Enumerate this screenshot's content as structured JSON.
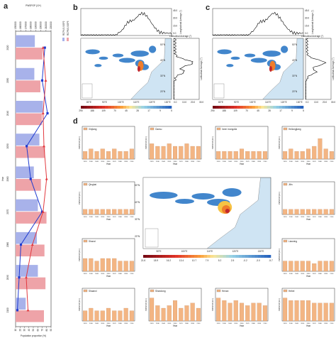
{
  "panel_labels": {
    "a": "a",
    "b": "b",
    "c": "c",
    "d": "d"
  },
  "colors": {
    "bar_blue": "#a8b2ea",
    "bar_red": "#eea3a8",
    "line_blue": "#1f3bd0",
    "line_red": "#e2393f",
    "map_blue": "#2d79c6",
    "map_orange": "#f07d2a",
    "sea": "#cfe4f3",
    "land": "#ffffff",
    "hbar": "#f3b583"
  },
  "chart_data": [
    {
      "id": "a",
      "type": "bar+line",
      "orientation": "rotated",
      "categories": [
        "2020",
        "2030",
        "2040",
        "2050",
        "2060",
        "2070",
        "2080",
        "2090",
        "2100"
      ],
      "xlabel": "Year",
      "ylabel_bars": "PWSPOP (10⁶)",
      "ylabel_lines": "Population proportion (%)",
      "bar_axis_ticks": [
        "150000",
        "160000",
        "170000",
        "180000",
        "190000",
        "200000",
        "210000",
        "220000"
      ],
      "line_axis_ticks": [
        "10",
        "20",
        "30",
        "40",
        "50",
        "60",
        "70",
        "80",
        "90"
      ],
      "legend": [
        "RCP4.5-SSP2",
        "RCP8.5-SSP3",
        "RCP4.5-SSP2",
        "RCP8.5-SSP3"
      ],
      "series": [
        {
          "name": "RCP4.5-SSP2",
          "kind": "bar",
          "values": [
            188000,
            187000,
            204000,
            197000,
            186000,
            194000,
            192000,
            194000,
            170000
          ]
        },
        {
          "name": "RCP8.5-SSP3",
          "kind": "bar",
          "values": [
            203000,
            199000,
            202000,
            208000,
            200000,
            211000,
            207000,
            209000,
            206000
          ]
        },
        {
          "name": "RCP4.5-SSP2",
          "kind": "line",
          "values": [
            76,
            70,
            82,
            35,
            44,
            70,
            22,
            18,
            14
          ]
        },
        {
          "name": "RCP8.5-SSP3",
          "kind": "line",
          "values": [
            72,
            78,
            72,
            74,
            80,
            72,
            48,
            34,
            38
          ]
        }
      ]
    },
    {
      "id": "b",
      "type": "map+marginals",
      "lon_ticks": [
        "80°E",
        "90°E",
        "100°E",
        "110°E",
        "120°E",
        "130°E"
      ],
      "lat_ticks": [
        "50°N",
        "40°N",
        "30°N",
        "20°N"
      ],
      "top_axis_ticks": [
        "45.0",
        "30.0",
        "15.0",
        "0.0"
      ],
      "top_label": "Longitudinal Average (°)",
      "right_axis_ticks": [
        "0.0",
        "10.0",
        "20.0",
        "30.0"
      ],
      "right_label": "Latitudinal Average (°)",
      "colorbar_ticks": [
        "290",
        "188",
        "109",
        "70",
        "45",
        "28",
        "17",
        "9",
        "5"
      ]
    },
    {
      "id": "c",
      "type": "map+marginals",
      "lon_ticks": [
        "80°E",
        "90°E",
        "100°E",
        "110°E",
        "120°E",
        "130°E"
      ],
      "lat_ticks": [
        "50°N",
        "40°N",
        "30°N",
        "20°N"
      ],
      "top_axis_ticks": [
        "45.0",
        "30.0",
        "15.0",
        "0.0"
      ],
      "top_label": "Longitudinal Average (°)",
      "right_axis_ticks": [
        "0.0",
        "10.0",
        "20.0",
        "30.0"
      ],
      "right_label": "Latitudinal Average (°)",
      "colorbar_ticks": [
        "290",
        "188",
        "109",
        "70",
        "45",
        "28",
        "17",
        "9",
        "5"
      ]
    },
    {
      "id": "d",
      "type": "bar",
      "xlabel": "Year",
      "ylabel": "PWSPOP (10⁶)",
      "categories": [
        "2020",
        "2030",
        "2040",
        "2050",
        "2060",
        "2070",
        "2080",
        "2090",
        "2100"
      ],
      "map_lon_ticks": [
        "90°E",
        "100°E",
        "110°E",
        "120°E",
        "130°E"
      ],
      "map_lat_ticks": [
        "50°N",
        "40°N",
        "30°N",
        "20°N"
      ],
      "map_colorbar_ticks": [
        "21.6",
        "18.9",
        "16.2",
        "13.4",
        "10.7",
        "7.9",
        "5.2",
        "2.5",
        "-0.2",
        "-3.0",
        "-5.7"
      ],
      "provinces": [
        {
          "name": "Xinjiang",
          "values": [
            3,
            4,
            3,
            4,
            3,
            4,
            3,
            3,
            4
          ]
        },
        {
          "name": "Gansu",
          "values": [
            6,
            5,
            5,
            6,
            5,
            5,
            6,
            5,
            5
          ]
        },
        {
          "name": "Inner mongolia",
          "values": [
            3,
            3,
            3,
            3,
            4,
            3,
            3,
            3,
            3
          ]
        },
        {
          "name": "Heilongjiang",
          "values": [
            3,
            4,
            3,
            3,
            4,
            5,
            8,
            4,
            3
          ]
        },
        {
          "name": "Qinghai",
          "values": [
            2,
            2,
            2,
            2,
            2,
            2,
            2,
            2,
            2
          ]
        },
        {
          "name": "Jilin",
          "values": [
            2,
            2,
            2,
            2,
            2,
            2,
            2,
            2,
            2
          ]
        },
        {
          "name": "Shanxi",
          "values": [
            5,
            5,
            4,
            5,
            5,
            5,
            4,
            4,
            4
          ]
        },
        {
          "name": "Liaoning",
          "values": [
            4,
            4,
            4,
            4,
            4,
            3,
            4,
            4,
            4
          ]
        },
        {
          "name": "Shaanxi",
          "values": [
            4,
            5,
            4,
            4,
            5,
            4,
            4,
            5,
            4
          ]
        },
        {
          "name": "Shandong",
          "values": [
            9,
            6,
            5,
            6,
            8,
            5,
            6,
            7,
            5
          ]
        },
        {
          "name": "Henan",
          "values": [
            9,
            8,
            7,
            8,
            7,
            6,
            7,
            7,
            6
          ]
        },
        {
          "name": "Hebei",
          "values": [
            9,
            8,
            8,
            8,
            8,
            7,
            7,
            7,
            7
          ]
        }
      ]
    }
  ]
}
